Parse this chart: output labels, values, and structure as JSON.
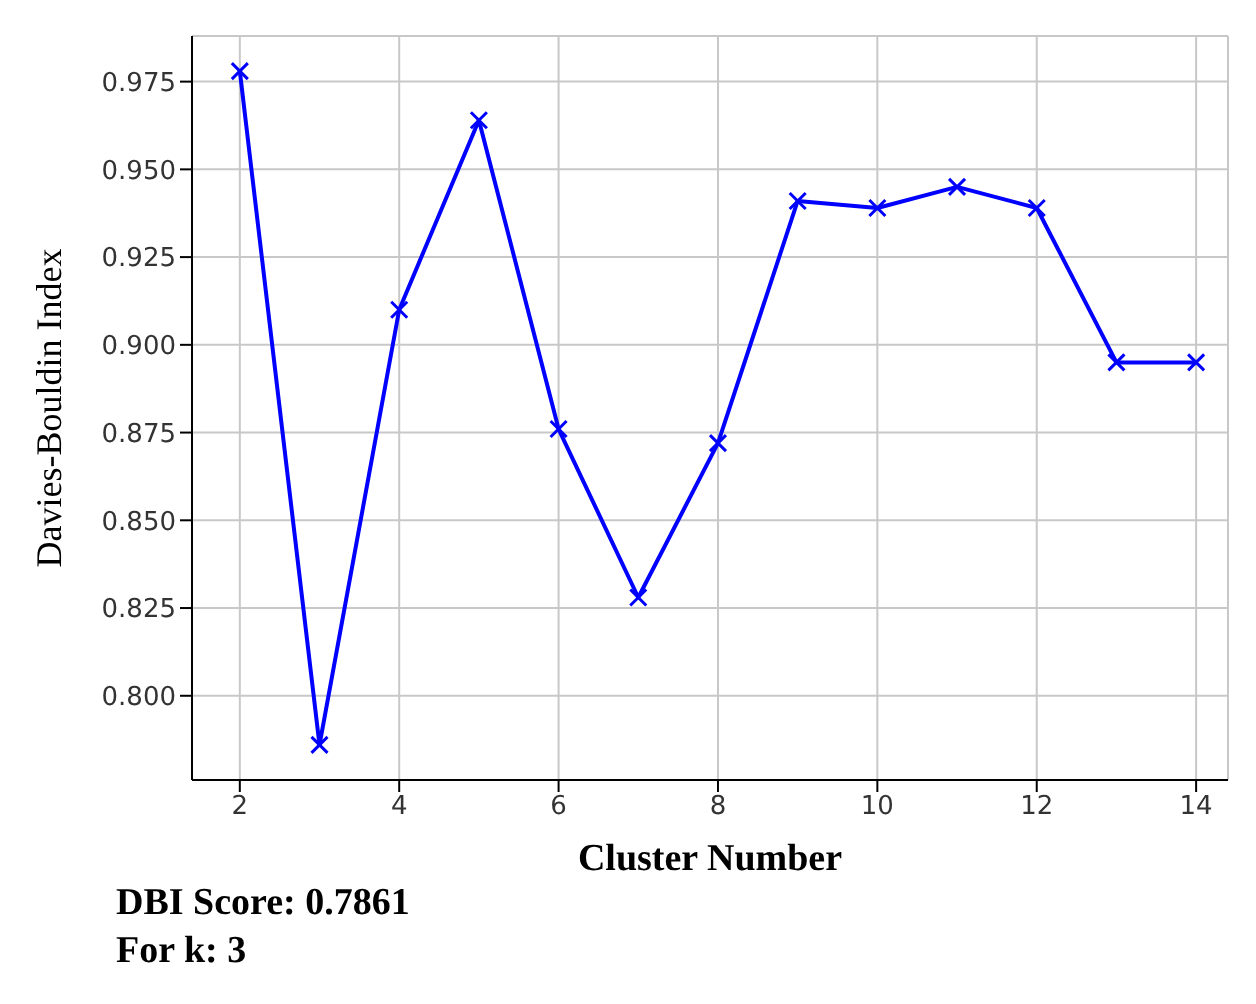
{
  "chart_data": {
    "type": "line",
    "xlabel": "Cluster Number",
    "ylabel": "Davies-Bouldin Index",
    "x": [
      2,
      3,
      4,
      5,
      6,
      7,
      8,
      9,
      10,
      11,
      12,
      13,
      14
    ],
    "series": [
      {
        "color": "#0000ff",
        "values": [
          0.978,
          0.786,
          0.91,
          0.964,
          0.876,
          0.828,
          0.872,
          0.941,
          0.939,
          0.945,
          0.939,
          0.895,
          0.895
        ]
      }
    ],
    "xlim": [
      1.4,
      14.4
    ],
    "xticks": [
      2,
      4,
      6,
      8,
      10,
      12,
      14
    ],
    "ylim": [
      0.776,
      0.988
    ],
    "yticks": [
      {
        "value": 0.8,
        "label": "0.800"
      },
      0.825,
      {
        "value": 0.85,
        "label": "0.850"
      },
      0.875,
      {
        "value": 0.9,
        "label": "0.900"
      },
      0.925,
      {
        "value": 0.95,
        "label": "0.950"
      },
      0.975
    ],
    "grid": true,
    "marker": "cross",
    "line_style": "solid",
    "annotations": [
      "DBI Score: 0.7861",
      "For k: 3"
    ]
  }
}
